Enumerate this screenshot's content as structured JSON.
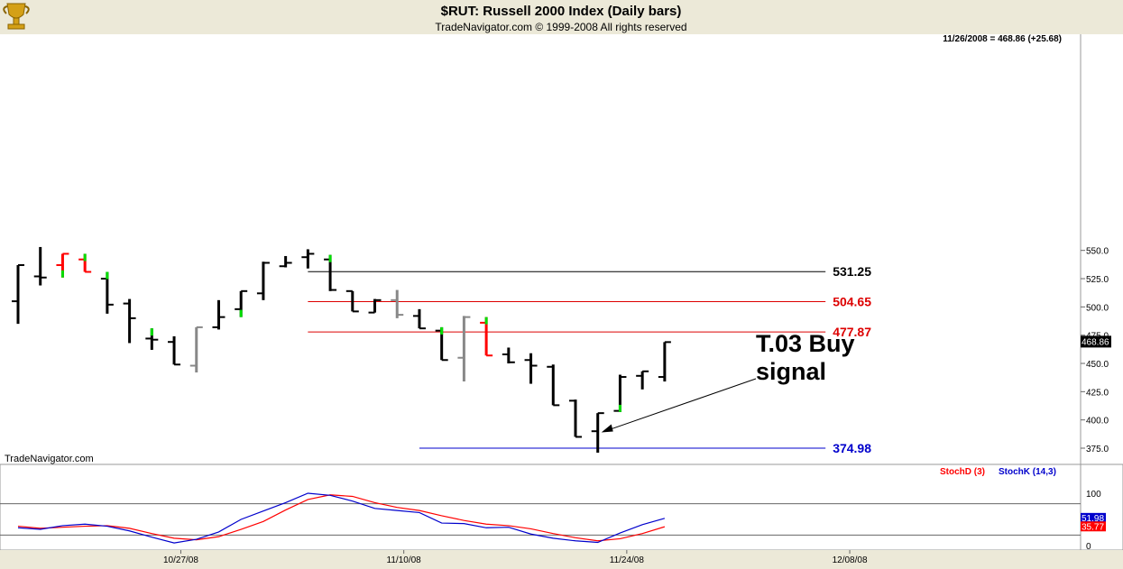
{
  "header": {
    "title": "$RUT:  Russell 2000 Index  (Daily bars)",
    "subtitle": "TradeNavigator.com © 1999-2008 All rights reserved",
    "quote": "11/26/2008 = 468.86 (+25.68)"
  },
  "watermark": "TradeNavigator.com",
  "colors": {
    "up": "#000000",
    "down": "#000000",
    "red_bar": "#ff0000",
    "gray_bar": "#888888",
    "green_tick": "#00dd00",
    "stoch_d": "#ff0000",
    "stoch_k": "#0000cc",
    "level_black": "#000000",
    "level_red": "#dd0000",
    "level_blue": "#0000cc"
  },
  "chart_data": {
    "type": "bar",
    "price_axis": {
      "ticks": [
        375,
        400,
        425,
        450,
        475,
        500,
        525,
        550
      ],
      "ylim": [
        367,
        557
      ]
    },
    "x_ticks": [
      {
        "label": "10/27/08",
        "i": 7.3
      },
      {
        "label": "11/10/08",
        "i": 17.3
      },
      {
        "label": "11/24/08",
        "i": 27.3
      },
      {
        "label": "12/08/08",
        "i": 37.3
      }
    ],
    "last_price": "468.86",
    "bars": [
      {
        "i": 0,
        "o": 505,
        "h": 537,
        "l": 485,
        "c": 537,
        "style": "black"
      },
      {
        "i": 1,
        "o": 527,
        "h": 553,
        "l": 519,
        "c": 526,
        "style": "black"
      },
      {
        "i": 2,
        "o": 537,
        "h": 547,
        "l": 526,
        "c": 547,
        "style": "red",
        "tick": "low"
      },
      {
        "i": 3,
        "o": 542,
        "h": 547,
        "l": 531,
        "c": 531,
        "style": "red",
        "tick": "high"
      },
      {
        "i": 4,
        "o": 525,
        "h": 531,
        "l": 494,
        "c": 502,
        "style": "black",
        "tick": "high"
      },
      {
        "i": 5,
        "o": 503,
        "h": 507,
        "l": 468,
        "c": 490,
        "style": "black"
      },
      {
        "i": 6,
        "o": 472,
        "h": 481,
        "l": 462,
        "c": 471,
        "style": "black",
        "tick": "high"
      },
      {
        "i": 7,
        "o": 469,
        "h": 474,
        "l": 449,
        "c": 449,
        "style": "black"
      },
      {
        "i": 8,
        "o": 448,
        "h": 482,
        "l": 442,
        "c": 482,
        "style": "gray"
      },
      {
        "i": 9,
        "o": 482,
        "h": 506,
        "l": 480,
        "c": 491,
        "style": "black"
      },
      {
        "i": 10,
        "o": 498,
        "h": 514,
        "l": 491,
        "c": 514,
        "style": "black",
        "tick": "low"
      },
      {
        "i": 11,
        "o": 512,
        "h": 540,
        "l": 506,
        "c": 539,
        "style": "black"
      },
      {
        "i": 12,
        "o": 536,
        "h": 545,
        "l": 535,
        "c": 539,
        "style": "black"
      },
      {
        "i": 13,
        "o": 544,
        "h": 551,
        "l": 534,
        "c": 547,
        "style": "black"
      },
      {
        "i": 14,
        "o": 542,
        "h": 546,
        "l": 514,
        "c": 515,
        "style": "black",
        "tick": "high"
      },
      {
        "i": 15,
        "o": 514,
        "h": 514,
        "l": 496,
        "c": 496,
        "style": "black"
      },
      {
        "i": 16,
        "o": 495,
        "h": 507,
        "l": 495,
        "c": 506,
        "style": "black"
      },
      {
        "i": 17,
        "o": 506,
        "h": 515,
        "l": 490,
        "c": 493,
        "style": "gray"
      },
      {
        "i": 18,
        "o": 492,
        "h": 498,
        "l": 481,
        "c": 481,
        "style": "black"
      },
      {
        "i": 19,
        "o": 479,
        "h": 482,
        "l": 453,
        "c": 453,
        "style": "black",
        "tick": "high"
      },
      {
        "i": 20,
        "o": 455,
        "h": 492,
        "l": 434,
        "c": 491,
        "style": "gray"
      },
      {
        "i": 21,
        "o": 486,
        "h": 491,
        "l": 457,
        "c": 457,
        "style": "red",
        "tick": "high"
      },
      {
        "i": 22,
        "o": 458,
        "h": 464,
        "l": 450,
        "c": 451,
        "style": "black"
      },
      {
        "i": 23,
        "o": 453,
        "h": 459,
        "l": 432,
        "c": 448,
        "style": "black"
      },
      {
        "i": 24,
        "o": 447,
        "h": 449,
        "l": 413,
        "c": 413,
        "style": "black"
      },
      {
        "i": 25,
        "o": 417,
        "h": 418,
        "l": 385,
        "c": 385,
        "style": "black"
      },
      {
        "i": 26,
        "o": 390,
        "h": 406,
        "l": 371,
        "c": 406,
        "style": "black"
      },
      {
        "i": 27,
        "o": 408,
        "h": 440,
        "l": 407,
        "c": 438,
        "style": "black",
        "tick": "low"
      },
      {
        "i": 28,
        "o": 439,
        "h": 443,
        "l": 427,
        "c": 443,
        "style": "black"
      },
      {
        "i": 29,
        "o": 438,
        "h": 468.86,
        "l": 434,
        "c": 468.86,
        "style": "black"
      }
    ],
    "levels": [
      {
        "value": 531.25,
        "label": "531.25",
        "color": "#000000",
        "from": 13,
        "to": 35
      },
      {
        "value": 504.65,
        "label": "504.65",
        "color": "#dd0000",
        "from": 13,
        "to": 35
      },
      {
        "value": 477.87,
        "label": "477.87",
        "color": "#dd0000",
        "from": 13,
        "to": 35
      },
      {
        "value": 374.98,
        "label": "374.98",
        "color": "#0000cc",
        "from": 18,
        "to": 35
      }
    ],
    "annotation": {
      "line1": "T.03 Buy",
      "line2": "signal",
      "target_i": 26,
      "target_value": 389
    },
    "stochastic": {
      "ticks": [
        0,
        100
      ],
      "levels": [
        20,
        80
      ],
      "legend_d": "StochD (3)",
      "legend_k": "StochK (14,3)",
      "last_k": "51.98",
      "last_d": "35.77",
      "k": [
        34,
        31,
        38,
        41,
        37,
        28,
        16,
        5,
        12,
        26,
        50,
        66,
        82,
        100,
        96,
        85,
        71,
        67,
        63,
        43,
        42,
        34,
        35,
        22,
        14,
        9,
        6,
        24,
        40,
        52
      ],
      "d": [
        37,
        33,
        35,
        37,
        38,
        33,
        23,
        14,
        11,
        17,
        31,
        46,
        68,
        88,
        97,
        94,
        82,
        73,
        67,
        57,
        48,
        41,
        38,
        32,
        23,
        15,
        9,
        13,
        23,
        36
      ]
    }
  }
}
